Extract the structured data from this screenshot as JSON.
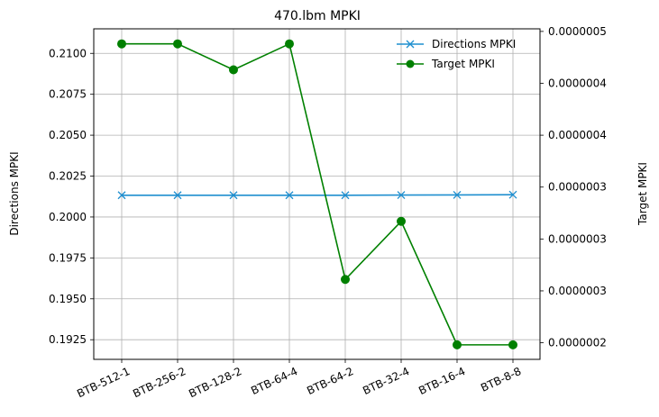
{
  "chart_data": {
    "type": "line",
    "title": "470.lbm MPKI",
    "xlabel": "",
    "ylabel_left": "Directions MPKI",
    "ylabel_right": "Target MPKI",
    "categories": [
      "BTB-512-1",
      "BTB-256-2",
      "BTB-128-2",
      "BTB-64-4",
      "BTB-64-2",
      "BTB-32-4",
      "BTB-16-4",
      "BTB-8-8"
    ],
    "series": [
      {
        "name": "Directions MPKI",
        "axis": "left",
        "color": "#1f8fcf",
        "marker": "x",
        "values": [
          0.20133,
          0.20133,
          0.20133,
          0.20133,
          0.20133,
          0.20134,
          0.20135,
          0.20136
        ]
      },
      {
        "name": "Target MPKI",
        "axis": "right",
        "color": "#008000",
        "marker": "circle",
        "values": [
          4.88e-07,
          4.88e-07,
          4.63e-07,
          4.88e-07,
          2.61e-07,
          3.17e-07,
          1.98e-07,
          1.98e-07
        ]
      }
    ],
    "left_axis": {
      "ylim": [
        0.1913,
        0.2115
      ],
      "ticks": [
        0.1925,
        0.195,
        0.1975,
        0.2,
        0.2025,
        0.205,
        0.2075,
        0.21
      ],
      "tick_labels": [
        "0.1925",
        "0.1950",
        "0.1975",
        "0.2000",
        "0.2025",
        "0.2050",
        "0.2075",
        "0.2100"
      ]
    },
    "right_axis": {
      "ylim": [
        1.84e-07,
        5.025e-07
      ],
      "ticks": [
        2e-07,
        2.5e-07,
        3e-07,
        3.5e-07,
        4e-07,
        4.5e-07,
        5e-07
      ],
      "tick_labels": [
        "0.0000002",
        "0.0000003",
        "0.0000003",
        "0.0000003",
        "0.0000004",
        "0.0000004",
        "0.0000005"
      ]
    },
    "grid": true,
    "legend_position": "top-right",
    "x_tick_rotation": "diagonal"
  }
}
